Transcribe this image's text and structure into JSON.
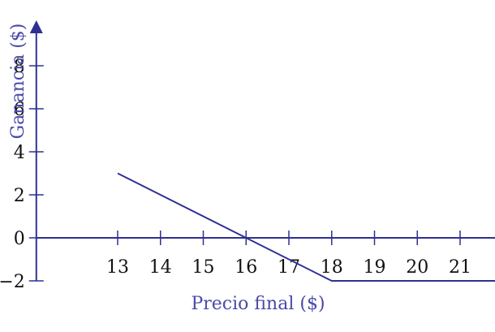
{
  "chart_data": {
    "type": "line",
    "xlabel": "Precio final ($)",
    "ylabel": "Ganancia ($)",
    "x_ticks": [
      13,
      14,
      15,
      16,
      17,
      18,
      19,
      20,
      21
    ],
    "y_ticks": [
      -2,
      0,
      2,
      4,
      6,
      8
    ],
    "y_tick_labels": [
      "−2",
      "0",
      "2",
      "4",
      "6",
      "8"
    ],
    "xlim": [
      11.1,
      22.0
    ],
    "ylim": [
      -2,
      10.0
    ],
    "series": [
      {
        "x": [
          13,
          18,
          22
        ],
        "y": [
          3,
          -2,
          -2
        ]
      }
    ],
    "grid": false,
    "colors": {
      "line": "#2e3192",
      "axis": "#2e3192",
      "label": "#4a4aa8",
      "text": "#111111"
    }
  }
}
